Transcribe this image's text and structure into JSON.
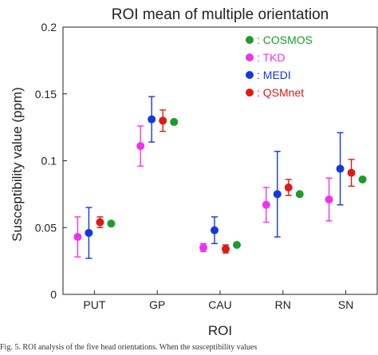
{
  "caption": "Fig. 5. ROI analysis of the five head orientations. When the susceptibility values",
  "chart_data": {
    "type": "scatter",
    "title": "ROI mean of multiple orientation",
    "xlabel": "ROI",
    "ylabel": "Susceptibility value (ppm)",
    "ylim": [
      0,
      0.2
    ],
    "yticks": [
      "0",
      "0.05",
      "0.1",
      "0.15",
      "0.2"
    ],
    "categories": [
      "PUT",
      "GP",
      "CAU",
      "RN",
      "SN"
    ],
    "grid": false,
    "legend_position": "top-right",
    "series": [
      {
        "name": ": TKD",
        "color": "#ee33ee",
        "values": [
          0.043,
          0.111,
          0.035,
          0.067,
          0.071
        ],
        "errors": [
          0.015,
          0.015,
          0.003,
          0.013,
          0.016
        ]
      },
      {
        "name": ": MEDI",
        "color": "#1538dd",
        "values": [
          0.046,
          0.131,
          0.048,
          0.075,
          0.094
        ],
        "errors": [
          0.019,
          0.017,
          0.01,
          0.032,
          0.027
        ]
      },
      {
        "name": ": QSMnet",
        "color": "#e01818",
        "values": [
          0.054,
          0.13,
          0.034,
          0.08,
          0.091
        ],
        "errors": [
          0.004,
          0.008,
          0.003,
          0.006,
          0.01
        ]
      },
      {
        "name": ": COSMOS",
        "color": "#1e9a2c",
        "values": [
          0.053,
          0.129,
          0.037,
          0.075,
          0.086
        ],
        "errors": [
          0,
          0,
          0,
          0,
          0
        ]
      }
    ],
    "legend_order": [
      ": COSMOS",
      ": TKD",
      ": MEDI",
      ": QSMnet"
    ]
  }
}
